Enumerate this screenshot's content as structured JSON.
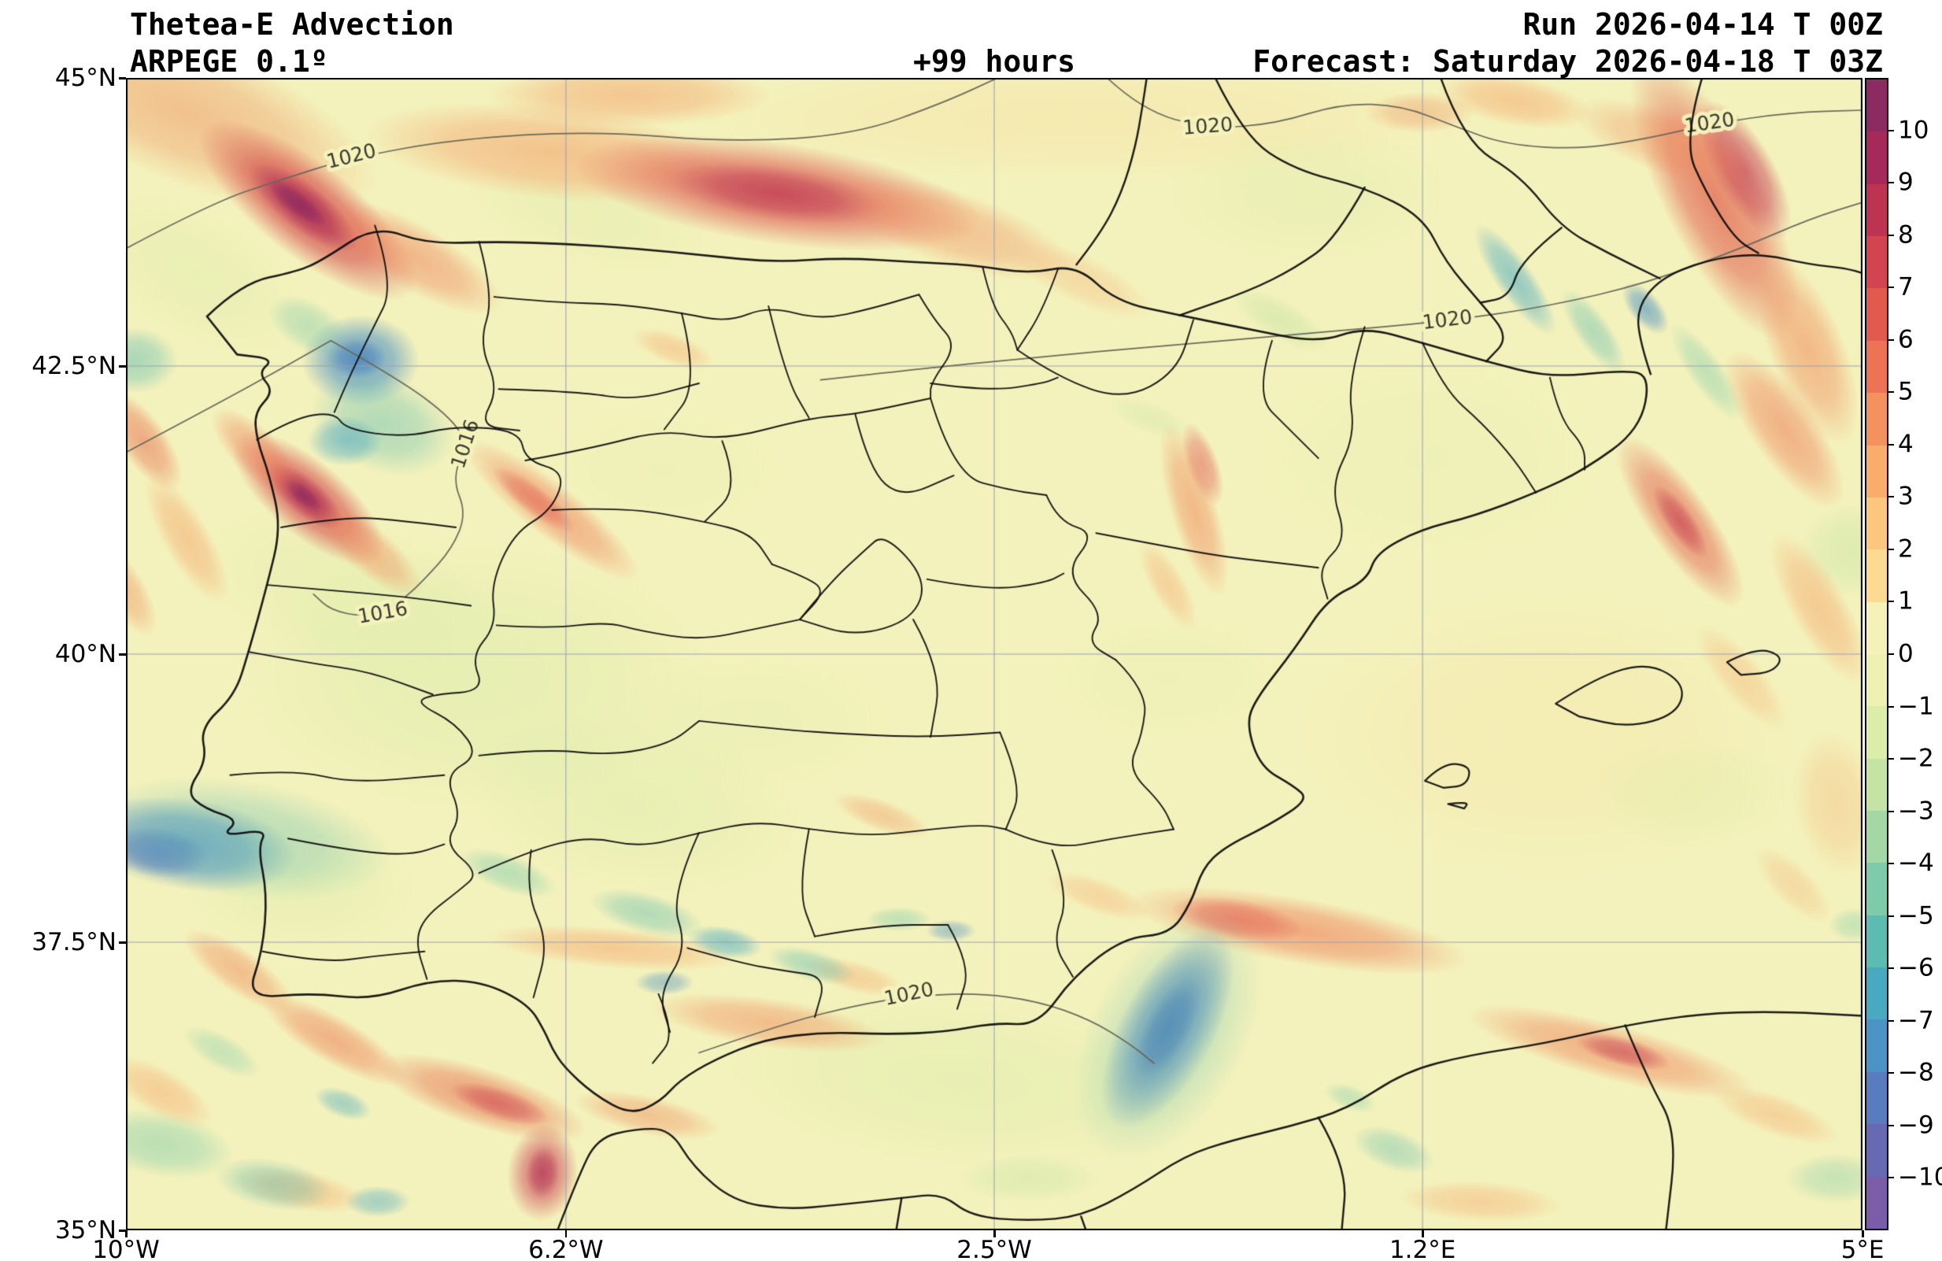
{
  "header": {
    "title": "Thetea-E Advection",
    "model": "ARPEGE 0.1º",
    "lead_time": "+99 hours",
    "run": "Run 2026-04-14 T 00Z",
    "forecast": "Forecast: Saturday 2026-04-18 T 03Z"
  },
  "chart_data": {
    "type": "heatmap",
    "title": "Thetea-E Advection",
    "model": "ARPEGE 0.1º",
    "lead_time_hours": 99,
    "run_time": "2026-04-14 T 00Z",
    "valid_time": "Saturday 2026-04-18 T 03Z",
    "region": "Iberian Peninsula",
    "grid": true,
    "base_color": "#f4f2bc",
    "x_axis": {
      "range_deg": [
        -10,
        5
      ],
      "ticks": [
        {
          "label": "10°W",
          "lon": -10
        },
        {
          "label": "6.2°W",
          "lon": -6.2
        },
        {
          "label": "2.5°W",
          "lon": -2.5
        },
        {
          "label": "1.2°E",
          "lon": 1.2
        },
        {
          "label": "5°E",
          "lon": 5
        }
      ]
    },
    "y_axis": {
      "range_deg": [
        35,
        45
      ],
      "ticks": [
        {
          "label": "45°N",
          "lat": 45
        },
        {
          "label": "42.5°N",
          "lat": 42.5
        },
        {
          "label": "40°N",
          "lat": 40
        },
        {
          "label": "37.5°N",
          "lat": 37.5
        },
        {
          "label": "35°N",
          "lat": 35
        }
      ]
    },
    "colorbar": {
      "range": [
        -11,
        11
      ],
      "tick_values": [
        10,
        9,
        8,
        7,
        6,
        5,
        4,
        3,
        2,
        1,
        0,
        -1,
        -2,
        -3,
        -4,
        -5,
        -6,
        -7,
        -8,
        -9,
        -10
      ],
      "tick_labels": [
        "10",
        "9",
        "8",
        "7",
        "6",
        "5",
        "4",
        "3",
        "2",
        "1",
        "0",
        "−1",
        "−2",
        "−3",
        "−4",
        "−5",
        "−6",
        "−7",
        "−8",
        "−9",
        "−10"
      ],
      "colors_top_to_bottom": [
        "#8c2a62",
        "#a62a59",
        "#bd3453",
        "#d14450",
        "#e05a4e",
        "#ec7454",
        "#f4925f",
        "#f9ad6c",
        "#fcc67e",
        "#fdda92",
        "#f5f2b9",
        "#edf2b2",
        "#dcedaa",
        "#c3e4a4",
        "#a3d8a4",
        "#7ecbaa",
        "#5dbcb2",
        "#48a9c0",
        "#4c93c5",
        "#587cbd",
        "#6769b2",
        "#7a5ca8"
      ]
    },
    "isobar_labels": [
      {
        "text": "1020",
        "x": 0.13,
        "y": 0.069,
        "rot": -14
      },
      {
        "text": "1016",
        "x": 0.196,
        "y": 0.318,
        "rot": -72
      },
      {
        "text": "1016",
        "x": 0.148,
        "y": 0.465,
        "rot": -10
      },
      {
        "text": "1020",
        "x": 0.623,
        "y": 0.043,
        "rot": -4
      },
      {
        "text": "1020",
        "x": 0.912,
        "y": 0.04,
        "rot": -8
      },
      {
        "text": "1020",
        "x": 0.761,
        "y": 0.211,
        "rot": -7
      },
      {
        "text": "1020",
        "x": 0.451,
        "y": 0.796,
        "rot": -12
      }
    ],
    "field_features": [
      [
        0.2,
        0.52,
        300,
        170,
        0,
        "#d9eca8",
        0.45
      ],
      [
        0.13,
        0.45,
        200,
        100,
        20,
        "#dceda9",
        0.4
      ],
      [
        0.29,
        0.63,
        220,
        110,
        10,
        "#d9eca8",
        0.4
      ],
      [
        0.36,
        0.56,
        180,
        90,
        0,
        "#e2f0ad",
        0.35
      ],
      [
        0.48,
        0.87,
        300,
        110,
        5,
        "#d9eca8",
        0.4
      ],
      [
        0.75,
        0.33,
        220,
        130,
        0,
        "#e2f0ad",
        0.3
      ],
      [
        0.68,
        0.1,
        180,
        90,
        0,
        "#dceda9",
        0.35
      ],
      [
        0.6,
        0.52,
        150,
        80,
        0,
        "#e2f0ad",
        0.3
      ],
      [
        0.9,
        0.62,
        130,
        70,
        0,
        "#dceda9",
        0.35
      ],
      [
        0.04,
        0.17,
        150,
        80,
        30,
        "#d9eca8",
        0.35
      ],
      [
        0.31,
        0.34,
        150,
        75,
        0,
        "#e2f0ad",
        0.3
      ],
      [
        0.55,
        0.035,
        500,
        80,
        0,
        "#f7dd9d",
        0.35
      ],
      [
        0.82,
        0.57,
        320,
        180,
        0,
        "#f6e2a2",
        0.3
      ],
      [
        0.1,
        0.7,
        150,
        90,
        0,
        "#d9eca8",
        0.35
      ],
      [
        0.995,
        0.41,
        70,
        60,
        0,
        "#c3e4a4",
        0.45
      ],
      [
        0.665,
        0.21,
        70,
        25,
        30,
        "#bfe2a3",
        0.45
      ],
      [
        0.59,
        0.295,
        55,
        20,
        20,
        "#cde7a6",
        0.4
      ],
      [
        0.52,
        0.955,
        90,
        30,
        0,
        "#c3e4a4",
        0.4
      ],
      [
        0.265,
        0.12,
        160,
        60,
        15,
        "#dceda9",
        0.35
      ],
      [
        0.035,
        0.03,
        260,
        90,
        22,
        "#f0925e",
        0.5
      ],
      [
        0.105,
        0.115,
        170,
        60,
        38,
        "#d6504f",
        0.85
      ],
      [
        0.102,
        0.112,
        85,
        30,
        38,
        "#ad2d56",
        0.8
      ],
      [
        0.099,
        0.109,
        45,
        15,
        38,
        "#8c2a62",
        0.75
      ],
      [
        0.165,
        0.155,
        130,
        42,
        30,
        "#ef7c55",
        0.5
      ],
      [
        0.245,
        0.065,
        240,
        60,
        6,
        "#f59c65",
        0.55
      ],
      [
        0.375,
        0.1,
        260,
        65,
        8,
        "#dd564e",
        0.75
      ],
      [
        0.375,
        0.1,
        140,
        35,
        8,
        "#bb3453",
        0.65
      ],
      [
        0.475,
        0.13,
        160,
        48,
        18,
        "#f08a5b",
        0.45
      ],
      [
        0.29,
        0.015,
        180,
        40,
        0,
        "#f59c65",
        0.5
      ],
      [
        0.55,
        0.175,
        100,
        32,
        25,
        "#f6b175",
        0.35
      ],
      [
        0.915,
        0.105,
        200,
        65,
        63,
        "#e2624f",
        0.75
      ],
      [
        0.932,
        0.08,
        100,
        38,
        60,
        "#c43a53",
        0.65
      ],
      [
        0.968,
        0.235,
        130,
        48,
        68,
        "#f08a5b",
        0.55
      ],
      [
        0.8,
        0.02,
        100,
        32,
        10,
        "#f5a468",
        0.5
      ],
      [
        0.745,
        0.03,
        70,
        26,
        0,
        "#f08f5d",
        0.4
      ],
      [
        0.955,
        0.305,
        120,
        42,
        55,
        "#ef7c55",
        0.55
      ],
      [
        0.895,
        0.385,
        130,
        40,
        55,
        "#e2624f",
        0.65
      ],
      [
        0.895,
        0.385,
        55,
        18,
        55,
        "#c43a53",
        0.55
      ],
      [
        0.975,
        0.46,
        110,
        36,
        60,
        "#f5a468",
        0.5
      ],
      [
        0.93,
        0.52,
        85,
        28,
        50,
        "#f6b175",
        0.4
      ],
      [
        0.105,
        0.365,
        120,
        48,
        40,
        "#d6504f",
        0.8
      ],
      [
        0.103,
        0.363,
        60,
        24,
        40,
        "#b02f54",
        0.8
      ],
      [
        0.102,
        0.362,
        30,
        12,
        40,
        "#8c2a62",
        0.7
      ],
      [
        0.075,
        0.325,
        75,
        30,
        45,
        "#ef7c55",
        0.5
      ],
      [
        0.14,
        0.41,
        85,
        30,
        40,
        "#f08a5b",
        0.5
      ],
      [
        0.01,
        0.315,
        75,
        30,
        55,
        "#e86f50",
        0.55
      ],
      [
        0.035,
        0.4,
        95,
        30,
        60,
        "#f5a468",
        0.5
      ],
      [
        0.0,
        0.445,
        65,
        26,
        60,
        "#f08f5d",
        0.45
      ],
      [
        0.245,
        0.375,
        140,
        34,
        38,
        "#ef7c55",
        0.55
      ],
      [
        0.235,
        0.366,
        65,
        18,
        38,
        "#e05550",
        0.5
      ],
      [
        0.315,
        0.235,
        55,
        20,
        20,
        "#f5a468",
        0.4
      ],
      [
        0.615,
        0.375,
        115,
        30,
        73,
        "#f08a5b",
        0.55
      ],
      [
        0.62,
        0.335,
        55,
        20,
        70,
        "#e05550",
        0.5
      ],
      [
        0.6,
        0.44,
        65,
        22,
        60,
        "#f5a468",
        0.4
      ],
      [
        0.435,
        0.64,
        65,
        20,
        20,
        "#f2955f",
        0.4
      ],
      [
        0.37,
        0.82,
        150,
        32,
        8,
        "#f08a5b",
        0.5
      ],
      [
        0.42,
        0.78,
        65,
        20,
        15,
        "#f5a468",
        0.4
      ],
      [
        0.28,
        0.755,
        160,
        26,
        5,
        "#f5a468",
        0.5
      ],
      [
        0.065,
        0.775,
        85,
        28,
        35,
        "#f08a5b",
        0.5
      ],
      [
        0.12,
        0.835,
        105,
        30,
        30,
        "#ef7c55",
        0.55
      ],
      [
        0.205,
        0.885,
        140,
        38,
        18,
        "#e86f50",
        0.6
      ],
      [
        0.215,
        0.89,
        65,
        20,
        18,
        "#cc4152",
        0.55
      ],
      [
        0.24,
        0.95,
        45,
        62,
        5,
        "#cc4152",
        0.65
      ],
      [
        0.24,
        0.95,
        22,
        34,
        5,
        "#ad2d56",
        0.6
      ],
      [
        0.3,
        0.9,
        95,
        25,
        12,
        "#f08a5b",
        0.45
      ],
      [
        0.02,
        0.88,
        75,
        30,
        30,
        "#f5a468",
        0.45
      ],
      [
        0.1,
        0.965,
        85,
        26,
        10,
        "#f5a468",
        0.45
      ],
      [
        0.675,
        0.74,
        220,
        42,
        10,
        "#ef7c55",
        0.6
      ],
      [
        0.64,
        0.73,
        85,
        26,
        10,
        "#e05550",
        0.5
      ],
      [
        0.56,
        0.71,
        70,
        22,
        20,
        "#f5a468",
        0.35
      ],
      [
        0.855,
        0.845,
        190,
        36,
        15,
        "#ef7c55",
        0.55
      ],
      [
        0.862,
        0.845,
        62,
        18,
        15,
        "#c43a53",
        0.55
      ],
      [
        0.95,
        0.9,
        85,
        26,
        20,
        "#f5a468",
        0.4
      ],
      [
        0.78,
        0.975,
        105,
        26,
        3,
        "#f5a468",
        0.4
      ],
      [
        0.985,
        0.63,
        95,
        55,
        80,
        "#f6b175",
        0.35
      ],
      [
        0.96,
        0.7,
        65,
        26,
        45,
        "#f5a468",
        0.3
      ],
      [
        0.885,
        0.055,
        120,
        40,
        20,
        "#f08a5b",
        0.4
      ],
      [
        0.135,
        0.245,
        75,
        58,
        0,
        "#4a90c4",
        0.75
      ],
      [
        0.133,
        0.243,
        38,
        26,
        0,
        "#3f78bd",
        0.55
      ],
      [
        0.148,
        0.3,
        95,
        62,
        20,
        "#62bdb2",
        0.45
      ],
      [
        0.126,
        0.315,
        48,
        32,
        0,
        "#49a7c5",
        0.55
      ],
      [
        0.105,
        0.215,
        55,
        32,
        30,
        "#74c8ab",
        0.4
      ],
      [
        0.005,
        0.245,
        55,
        42,
        0,
        "#62bdb2",
        0.5
      ],
      [
        0.035,
        0.665,
        140,
        58,
        8,
        "#4585c6",
        0.7
      ],
      [
        0.018,
        0.672,
        65,
        32,
        8,
        "#5273bc",
        0.6
      ],
      [
        0.065,
        0.66,
        195,
        75,
        8,
        "#62bdb2",
        0.4
      ],
      [
        0.22,
        0.69,
        65,
        24,
        20,
        "#74c8ab",
        0.45
      ],
      [
        0.3,
        0.725,
        75,
        26,
        15,
        "#62bdb2",
        0.45
      ],
      [
        0.345,
        0.75,
        48,
        20,
        10,
        "#45a8c4",
        0.55
      ],
      [
        0.395,
        0.77,
        58,
        20,
        15,
        "#62bdb2",
        0.45
      ],
      [
        0.31,
        0.785,
        38,
        16,
        0,
        "#4a90c4",
        0.45
      ],
      [
        0.445,
        0.73,
        42,
        16,
        0,
        "#74c8ab",
        0.4
      ],
      [
        0.475,
        0.74,
        32,
        14,
        0,
        "#4a90c4",
        0.45
      ],
      [
        0.6,
        0.825,
        60,
        140,
        28,
        "#4a7dc0",
        0.75
      ],
      [
        0.6,
        0.825,
        30,
        75,
        28,
        "#3f66b6",
        0.6
      ],
      [
        0.6,
        0.83,
        100,
        175,
        28,
        "#62bdb2",
        0.35
      ],
      [
        0.02,
        0.925,
        95,
        42,
        10,
        "#74c8ab",
        0.45
      ],
      [
        0.085,
        0.96,
        75,
        32,
        10,
        "#62bdb2",
        0.45
      ],
      [
        0.145,
        0.975,
        42,
        20,
        0,
        "#49a7c5",
        0.45
      ],
      [
        0.055,
        0.845,
        55,
        22,
        30,
        "#74c8ab",
        0.35
      ],
      [
        0.125,
        0.89,
        38,
        18,
        20,
        "#45a8c4",
        0.45
      ],
      [
        0.8,
        0.175,
        85,
        24,
        55,
        "#45a8c4",
        0.55
      ],
      [
        0.845,
        0.22,
        65,
        22,
        55,
        "#62bdb2",
        0.45
      ],
      [
        0.875,
        0.2,
        40,
        20,
        50,
        "#4a90c4",
        0.6
      ],
      [
        0.91,
        0.255,
        75,
        22,
        55,
        "#74c8ab",
        0.4
      ],
      [
        0.985,
        0.955,
        65,
        32,
        0,
        "#74c8ab",
        0.35
      ],
      [
        0.73,
        0.93,
        55,
        26,
        20,
        "#62bdb2",
        0.4
      ],
      [
        0.705,
        0.885,
        35,
        16,
        20,
        "#74c8ab",
        0.35
      ],
      [
        0.995,
        0.735,
        32,
        22,
        0,
        "#74c8ab",
        0.35
      ]
    ]
  }
}
